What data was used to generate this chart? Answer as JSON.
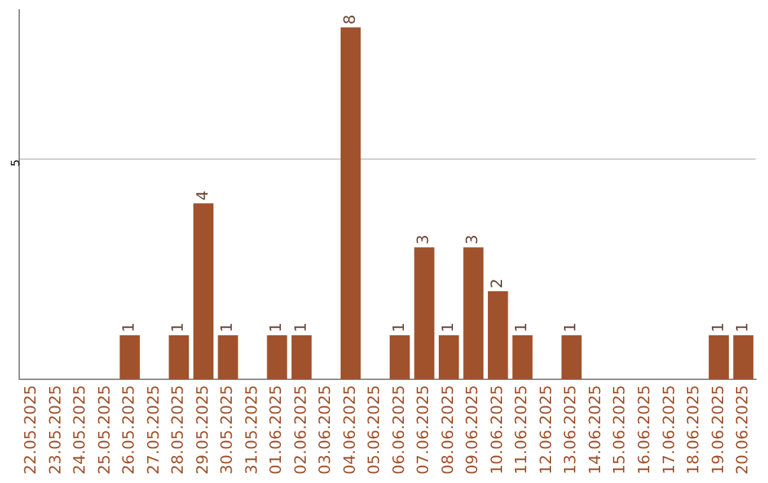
{
  "chart_data": {
    "type": "bar",
    "categories": [
      "22.05.2025",
      "23.05.2025",
      "24.05.2025",
      "25.05.2025",
      "26.05.2025",
      "27.05.2025",
      "28.05.2025",
      "29.05.2025",
      "30.05.2025",
      "31.05.2025",
      "01.06.2025",
      "02.06.2025",
      "03.06.2025",
      "04.06.2025",
      "05.06.2025",
      "06.06.2025",
      "07.06.2025",
      "08.06.2025",
      "09.06.2025",
      "10.06.2025",
      "11.06.2025",
      "12.06.2025",
      "13.06.2025",
      "14.06.2025",
      "15.06.2025",
      "16.06.2025",
      "17.06.2025",
      "18.06.2025",
      "19.06.2025",
      "20.06.2025"
    ],
    "values": [
      null,
      null,
      null,
      null,
      1,
      null,
      1,
      4,
      1,
      null,
      1,
      1,
      null,
      8,
      null,
      1,
      3,
      1,
      3,
      2,
      1,
      null,
      1,
      null,
      null,
      null,
      null,
      null,
      1,
      1
    ],
    "color": "#a0522d",
    "ylim": [
      0,
      8.4
    ],
    "yticks": [
      5
    ],
    "grid": "y",
    "data_labels": true,
    "legend": false
  }
}
